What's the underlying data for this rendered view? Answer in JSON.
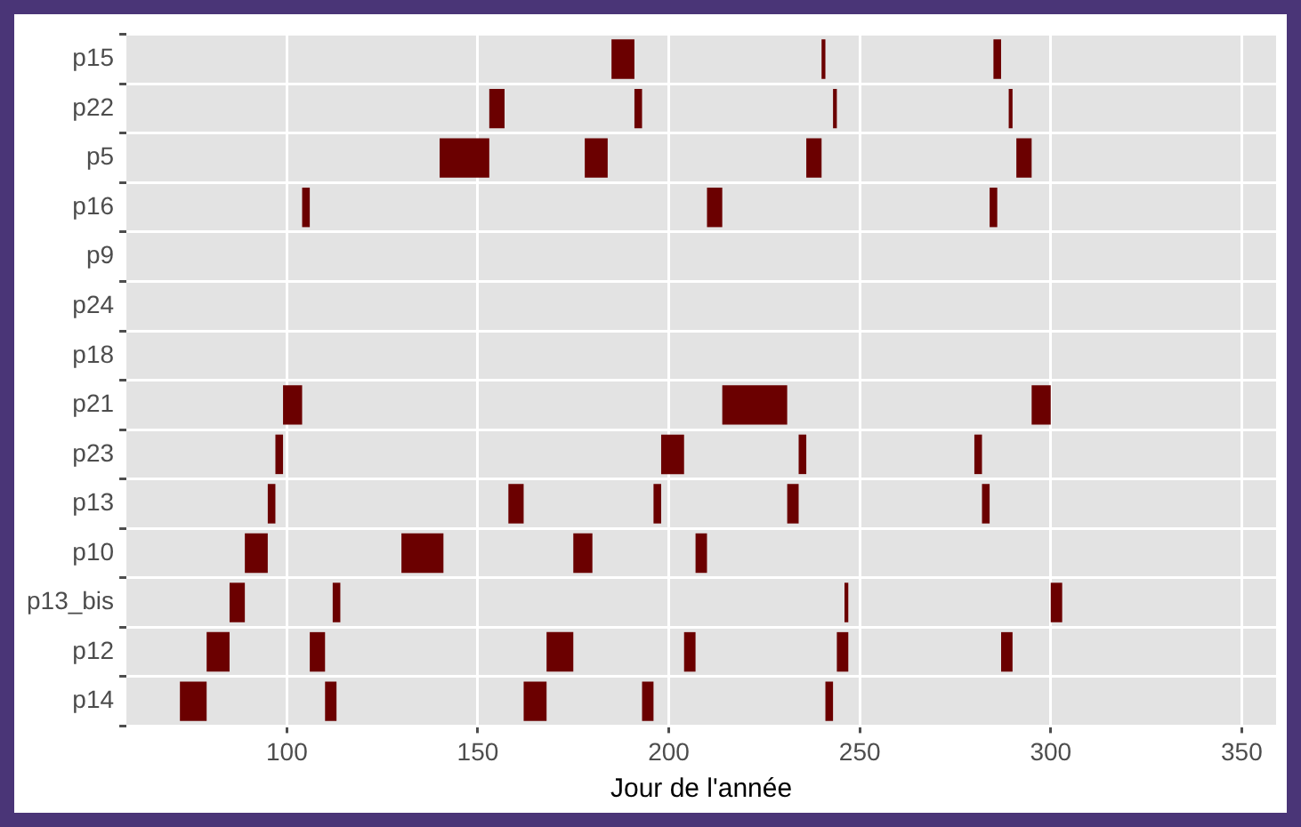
{
  "chart_data": {
    "type": "bar",
    "orientation": "horizontal",
    "xlabel": "Jour de l'année",
    "categories": [
      "p15",
      "p22",
      "p5",
      "p16",
      "p9",
      "p24",
      "p18",
      "p21",
      "p23",
      "p13",
      "p10",
      "p13_bis",
      "p12",
      "p14"
    ],
    "series": [
      {
        "color": "#6b0000",
        "base": [
          185,
          153,
          140,
          104,
          null,
          null,
          null,
          99,
          97,
          95,
          89,
          85,
          79,
          72
        ],
        "values": [
          6,
          4,
          13,
          2,
          null,
          null,
          null,
          5,
          2,
          2,
          6,
          4,
          6,
          7
        ]
      },
      {
        "color": "#6b0000",
        "base": [
          240,
          191,
          178,
          210,
          null,
          null,
          null,
          214,
          198,
          158,
          130,
          112,
          106,
          110
        ],
        "values": [
          1,
          2,
          6,
          4,
          null,
          null,
          null,
          17,
          6,
          4,
          11,
          2,
          4,
          3
        ]
      },
      {
        "color": "#6b0000",
        "base": [
          285,
          243,
          236,
          284,
          null,
          null,
          null,
          295,
          234,
          196,
          175,
          246,
          168,
          162
        ],
        "values": [
          2,
          1,
          4,
          2,
          null,
          null,
          null,
          5,
          2,
          2,
          5,
          1,
          7,
          6
        ]
      },
      {
        "color": "#6b0000",
        "base": [
          null,
          289,
          291,
          null,
          null,
          null,
          null,
          null,
          280,
          231,
          207,
          300,
          204,
          193
        ],
        "values": [
          null,
          1,
          4,
          null,
          null,
          null,
          null,
          null,
          2,
          3,
          3,
          3,
          3,
          3
        ]
      },
      {
        "color": "#6b0000",
        "base": [
          null,
          null,
          null,
          null,
          null,
          null,
          null,
          null,
          null,
          282,
          null,
          null,
          244,
          241
        ],
        "values": [
          null,
          null,
          null,
          null,
          null,
          null,
          null,
          null,
          null,
          2,
          null,
          null,
          3,
          2
        ]
      },
      {
        "color": "#6b0000",
        "base": [
          null,
          null,
          null,
          null,
          null,
          null,
          null,
          null,
          null,
          null,
          null,
          null,
          287,
          null
        ],
        "values": [
          null,
          null,
          null,
          null,
          null,
          null,
          null,
          null,
          null,
          null,
          null,
          null,
          3,
          null
        ]
      }
    ],
    "xlim": [
      58,
      359
    ],
    "xticks": [
      100,
      150,
      200,
      250,
      300,
      350
    ],
    "grid": true,
    "legend": false
  }
}
